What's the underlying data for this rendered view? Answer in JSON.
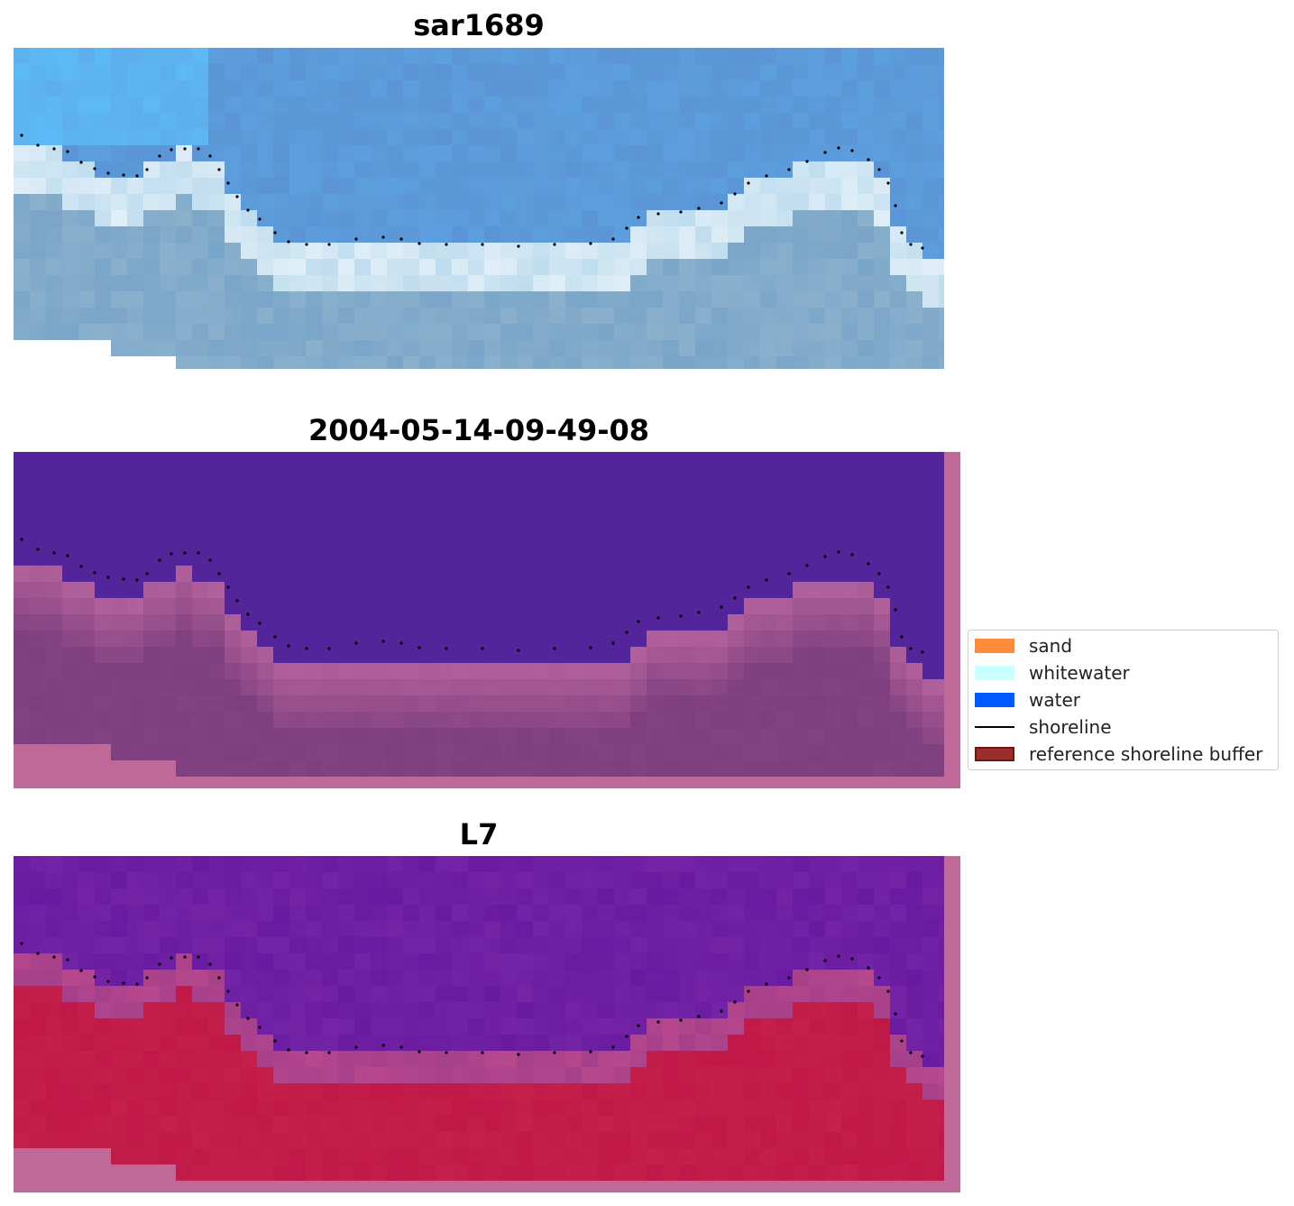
{
  "panels": [
    {
      "title": "sar1689"
    },
    {
      "title": "2004-05-14-09-49-08"
    },
    {
      "title": "L7"
    }
  ],
  "legend": {
    "items": [
      {
        "label": "sand",
        "kind": "patch",
        "color": "#ff8c3a"
      },
      {
        "label": "whitewater",
        "kind": "patch",
        "color": "#c8ffff"
      },
      {
        "label": "water",
        "kind": "patch",
        "color": "#005aff"
      },
      {
        "label": "shoreline",
        "kind": "line",
        "color": "#000000"
      },
      {
        "label": "reference shoreline buffer",
        "kind": "patch",
        "color": "#9b2d2d"
      }
    ]
  },
  "colors": {
    "sky_water": "#5b8fd0",
    "whitewater": "#dfeef7",
    "nearshore": "#8ab0cc",
    "class_water": "#54249a",
    "buffer_pink": "#c06898",
    "buffer_dark": "#7e3f7e",
    "prob_water": "#6a1aa0",
    "prob_sand": "#c01848"
  }
}
